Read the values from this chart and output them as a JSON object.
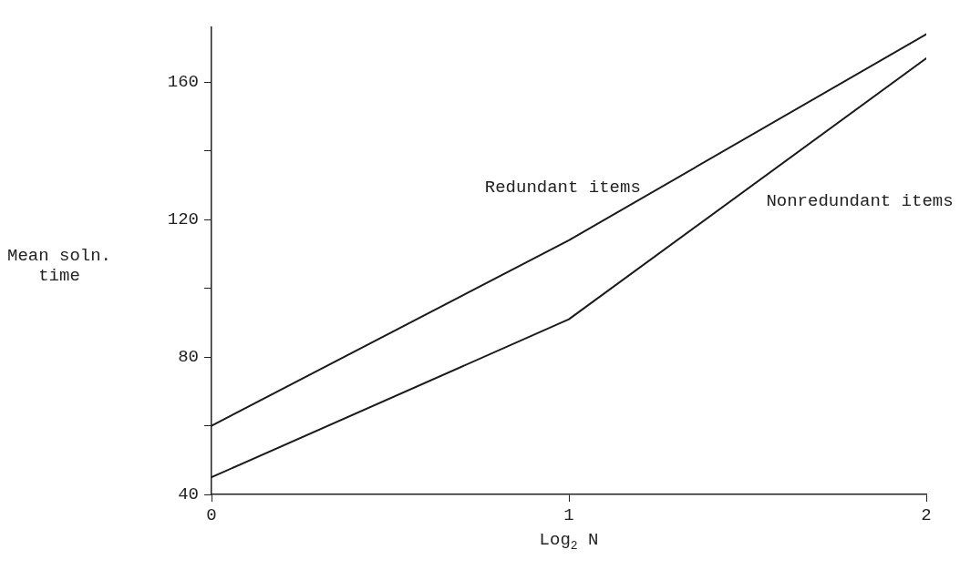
{
  "chart_data": {
    "type": "line",
    "xlabel": "Log$_{2}$ N",
    "ylabel": "Mean soln. time",
    "x": [
      0,
      1,
      2
    ],
    "series": [
      {
        "name": "Redundant items",
        "color": "#1a1a1a",
        "values": [
          60,
          114,
          174
        ]
      },
      {
        "name": "Nonredundant items",
        "color": "#1a1a1a",
        "values": [
          45,
          91,
          167
        ]
      }
    ],
    "xlim": [
      0,
      2
    ],
    "xticks": [
      0,
      1,
      2
    ],
    "ylim": [
      40,
      176
    ],
    "yticks": [
      40,
      {
        "value": 60,
        "label": null
      },
      80,
      {
        "value": 100,
        "label": null
      },
      120,
      {
        "value": 140,
        "label": null
      },
      160
    ],
    "grid": false,
    "legend": false,
    "marker": "none",
    "line_style": "solid"
  }
}
